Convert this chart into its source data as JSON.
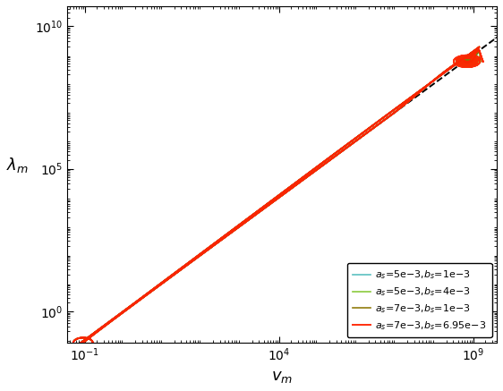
{
  "legend_colors": [
    "#52BCBC",
    "#85C832",
    "#8B7500",
    "#FF2200"
  ],
  "legend_texts": [
    "a_s=5e-3,b_s=1e-3",
    "a_s=5e-3,b_s=4e-3",
    "a_s=7e-3,b_s=1e-3",
    "a_s=7e-3,b_s=6.95e-3"
  ],
  "xlim": [
    0.035,
    4000000000.0
  ],
  "ylim": [
    0.08,
    50000000000.0
  ],
  "xlabel": "v_m",
  "ylabel": "lambda_m",
  "ref_line_slope": 1.0,
  "ref_line_intercept": 0.0
}
